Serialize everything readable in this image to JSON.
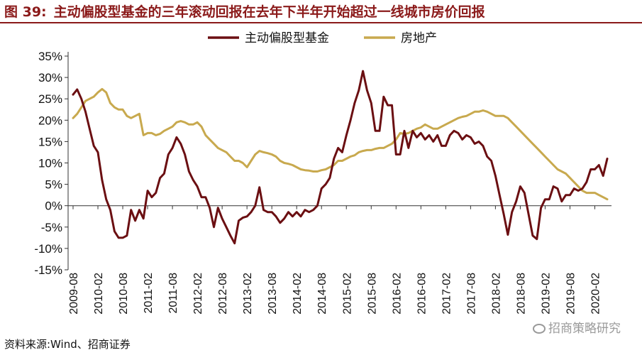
{
  "figure": {
    "label": "图 39:",
    "title": "主动偏股型基金的三年滚动回报在去年下半年开始超过一线城市房价回报"
  },
  "source": "资料来源:Wind、招商证券",
  "watermark": "招商策略研究",
  "chart_data": {
    "type": "line",
    "title": "",
    "xlabel": "",
    "ylabel": "",
    "y_tick_labels": [
      "35%",
      "30%",
      "25%",
      "20%",
      "15%",
      "10%",
      "5%",
      "0%",
      "-5%",
      "-10%",
      "-15%"
    ],
    "y_ticks": [
      35,
      30,
      25,
      20,
      15,
      10,
      5,
      0,
      -5,
      -10,
      -15
    ],
    "ylim": [
      -15,
      35
    ],
    "x_tick_labels": [
      "2009-08",
      "2010-02",
      "2010-08",
      "2011-02",
      "2011-08",
      "2012-02",
      "2012-08",
      "2013-02",
      "2013-08",
      "2014-02",
      "2014-08",
      "2015-02",
      "2015-08",
      "2016-02",
      "2016-08",
      "2017-02",
      "2017-08",
      "2018-02",
      "2018-08",
      "2019-02",
      "2019-08",
      "2020-02"
    ],
    "legend": {
      "position": "top-center",
      "entries": [
        "主动偏股型基金",
        "房地产"
      ]
    },
    "grid": false,
    "series": [
      {
        "name": "主动偏股型基金",
        "color": "#6b0f12",
        "points": [
          [
            "2009-08",
            26.0
          ],
          [
            "2009-09",
            27.2
          ],
          [
            "2009-10",
            25.0
          ],
          [
            "2009-11",
            22.0
          ],
          [
            "2009-12",
            18.0
          ],
          [
            "2010-01",
            14.0
          ],
          [
            "2010-02",
            12.5
          ],
          [
            "2010-03",
            6.0
          ],
          [
            "2010-04",
            1.5
          ],
          [
            "2010-05",
            -1.0
          ],
          [
            "2010-06",
            -6.0
          ],
          [
            "2010-07",
            -7.5
          ],
          [
            "2010-08",
            -7.5
          ],
          [
            "2010-09",
            -7.0
          ],
          [
            "2010-10",
            -1.0
          ],
          [
            "2010-11",
            -3.5
          ],
          [
            "2010-12",
            -1.0
          ],
          [
            "2011-01",
            -3.0
          ],
          [
            "2011-02",
            3.5
          ],
          [
            "2011-03",
            2.0
          ],
          [
            "2011-04",
            3.0
          ],
          [
            "2011-05",
            6.5
          ],
          [
            "2011-06",
            7.5
          ],
          [
            "2011-07",
            12.0
          ],
          [
            "2011-08",
            13.5
          ],
          [
            "2011-09",
            16.0
          ],
          [
            "2011-10",
            14.5
          ],
          [
            "2011-11",
            12.0
          ],
          [
            "2011-12",
            8.0
          ],
          [
            "2012-01",
            6.0
          ],
          [
            "2012-02",
            4.5
          ],
          [
            "2012-03",
            2.0
          ],
          [
            "2012-04",
            2.0
          ],
          [
            "2012-05",
            -0.5
          ],
          [
            "2012-06",
            -5.0
          ],
          [
            "2012-07",
            -0.5
          ],
          [
            "2012-08",
            -3.0
          ],
          [
            "2012-09",
            -5.0
          ],
          [
            "2012-10",
            -7.0
          ],
          [
            "2012-11",
            -8.8
          ],
          [
            "2012-12",
            -3.5
          ],
          [
            "2013-01",
            -2.8
          ],
          [
            "2013-02",
            -2.5
          ],
          [
            "2013-03",
            -1.5
          ],
          [
            "2013-04",
            0.0
          ],
          [
            "2013-05",
            4.3
          ],
          [
            "2013-06",
            -1.0
          ],
          [
            "2013-07",
            -1.5
          ],
          [
            "2013-08",
            -1.5
          ],
          [
            "2013-09",
            -2.5
          ],
          [
            "2013-10",
            -4.0
          ],
          [
            "2013-11",
            -3.0
          ],
          [
            "2013-12",
            -1.5
          ],
          [
            "2014-01",
            -2.5
          ],
          [
            "2014-02",
            -1.5
          ],
          [
            "2014-03",
            -2.5
          ],
          [
            "2014-04",
            -1.0
          ],
          [
            "2014-05",
            -1.5
          ],
          [
            "2014-06",
            -1.0
          ],
          [
            "2014-07",
            0.0
          ],
          [
            "2014-08",
            4.0
          ],
          [
            "2014-09",
            5.0
          ],
          [
            "2014-10",
            6.5
          ],
          [
            "2014-11",
            11.0
          ],
          [
            "2014-12",
            13.5
          ],
          [
            "2015-01",
            12.5
          ],
          [
            "2015-02",
            16.5
          ],
          [
            "2015-03",
            20.0
          ],
          [
            "2015-04",
            24.0
          ],
          [
            "2015-05",
            27.0
          ],
          [
            "2015-06",
            31.5
          ],
          [
            "2015-07",
            27.0
          ],
          [
            "2015-08",
            24.0
          ],
          [
            "2015-09",
            17.5
          ],
          [
            "2015-10",
            17.5
          ],
          [
            "2015-11",
            25.5
          ],
          [
            "2015-12",
            23.5
          ],
          [
            "2016-01",
            23.5
          ],
          [
            "2016-02",
            12.0
          ],
          [
            "2016-03",
            12.0
          ],
          [
            "2016-04",
            17.5
          ],
          [
            "2016-05",
            13.5
          ],
          [
            "2016-06",
            17.5
          ],
          [
            "2016-07",
            16.0
          ],
          [
            "2016-08",
            17.0
          ],
          [
            "2016-09",
            15.5
          ],
          [
            "2016-10",
            16.5
          ],
          [
            "2016-11",
            15.0
          ],
          [
            "2016-12",
            16.5
          ],
          [
            "2017-01",
            14.0
          ],
          [
            "2017-02",
            14.0
          ],
          [
            "2017-03",
            16.5
          ],
          [
            "2017-04",
            17.5
          ],
          [
            "2017-05",
            17.0
          ],
          [
            "2017-06",
            15.5
          ],
          [
            "2017-07",
            16.5
          ],
          [
            "2017-08",
            16.0
          ],
          [
            "2017-09",
            14.5
          ],
          [
            "2017-10",
            15.0
          ],
          [
            "2017-11",
            14.0
          ],
          [
            "2017-12",
            11.5
          ],
          [
            "2018-01",
            10.5
          ],
          [
            "2018-02",
            7.0
          ],
          [
            "2018-03",
            2.5
          ],
          [
            "2018-04",
            -2.0
          ],
          [
            "2018-05",
            -6.8
          ],
          [
            "2018-06",
            -1.5
          ],
          [
            "2018-07",
            1.0
          ],
          [
            "2018-08",
            4.5
          ],
          [
            "2018-09",
            3.0
          ],
          [
            "2018-10",
            -2.0
          ],
          [
            "2018-11",
            -7.0
          ],
          [
            "2018-12",
            -7.8
          ],
          [
            "2019-01",
            -0.5
          ],
          [
            "2019-02",
            1.5
          ],
          [
            "2019-03",
            1.5
          ],
          [
            "2019-04",
            4.5
          ],
          [
            "2019-05",
            4.0
          ],
          [
            "2019-06",
            1.0
          ],
          [
            "2019-07",
            2.5
          ],
          [
            "2019-08",
            2.5
          ],
          [
            "2019-09",
            4.0
          ],
          [
            "2019-10",
            3.5
          ],
          [
            "2019-11",
            4.0
          ],
          [
            "2019-12",
            5.5
          ],
          [
            "2020-01",
            8.5
          ],
          [
            "2020-02",
            8.5
          ],
          [
            "2020-03",
            9.5
          ],
          [
            "2020-04",
            7.0
          ],
          [
            "2020-05",
            11.0
          ]
        ]
      },
      {
        "name": "房地产",
        "color": "#c8a94e",
        "points": [
          [
            "2009-08",
            20.5
          ],
          [
            "2009-09",
            21.5
          ],
          [
            "2009-10",
            23.0
          ],
          [
            "2009-11",
            24.5
          ],
          [
            "2009-12",
            25.0
          ],
          [
            "2010-01",
            25.5
          ],
          [
            "2010-02",
            26.5
          ],
          [
            "2010-03",
            27.3
          ],
          [
            "2010-04",
            26.5
          ],
          [
            "2010-05",
            24.0
          ],
          [
            "2010-06",
            23.0
          ],
          [
            "2010-07",
            22.5
          ],
          [
            "2010-08",
            22.5
          ],
          [
            "2010-09",
            21.0
          ],
          [
            "2010-10",
            20.5
          ],
          [
            "2010-11",
            21.0
          ],
          [
            "2010-12",
            21.5
          ],
          [
            "2011-01",
            16.5
          ],
          [
            "2011-02",
            17.0
          ],
          [
            "2011-03",
            17.0
          ],
          [
            "2011-04",
            16.5
          ],
          [
            "2011-05",
            16.8
          ],
          [
            "2011-06",
            17.5
          ],
          [
            "2011-07",
            18.0
          ],
          [
            "2011-08",
            18.5
          ],
          [
            "2011-09",
            19.5
          ],
          [
            "2011-10",
            19.8
          ],
          [
            "2011-11",
            19.5
          ],
          [
            "2011-12",
            19.0
          ],
          [
            "2012-01",
            19.0
          ],
          [
            "2012-02",
            19.5
          ],
          [
            "2012-03",
            18.5
          ],
          [
            "2012-04",
            16.5
          ],
          [
            "2012-05",
            15.5
          ],
          [
            "2012-06",
            14.5
          ],
          [
            "2012-07",
            13.5
          ],
          [
            "2012-08",
            13.0
          ],
          [
            "2012-09",
            12.5
          ],
          [
            "2012-10",
            11.5
          ],
          [
            "2012-11",
            10.5
          ],
          [
            "2012-12",
            10.5
          ],
          [
            "2013-01",
            10.0
          ],
          [
            "2013-02",
            9.0
          ],
          [
            "2013-03",
            10.5
          ],
          [
            "2013-04",
            12.0
          ],
          [
            "2013-05",
            12.8
          ],
          [
            "2013-06",
            12.5
          ],
          [
            "2013-07",
            12.3
          ],
          [
            "2013-08",
            12.0
          ],
          [
            "2013-09",
            11.5
          ],
          [
            "2013-10",
            10.5
          ],
          [
            "2013-11",
            10.0
          ],
          [
            "2013-12",
            9.8
          ],
          [
            "2014-01",
            9.5
          ],
          [
            "2014-02",
            9.0
          ],
          [
            "2014-03",
            8.5
          ],
          [
            "2014-04",
            8.3
          ],
          [
            "2014-05",
            8.2
          ],
          [
            "2014-06",
            8.0
          ],
          [
            "2014-07",
            8.0
          ],
          [
            "2014-08",
            8.3
          ],
          [
            "2014-09",
            8.5
          ],
          [
            "2014-10",
            9.0
          ],
          [
            "2014-11",
            9.5
          ],
          [
            "2014-12",
            10.5
          ],
          [
            "2015-01",
            10.5
          ],
          [
            "2015-02",
            11.0
          ],
          [
            "2015-03",
            11.5
          ],
          [
            "2015-04",
            11.8
          ],
          [
            "2015-05",
            12.5
          ],
          [
            "2015-06",
            12.8
          ],
          [
            "2015-07",
            13.0
          ],
          [
            "2015-08",
            13.0
          ],
          [
            "2015-09",
            13.3
          ],
          [
            "2015-10",
            13.5
          ],
          [
            "2015-11",
            13.5
          ],
          [
            "2015-12",
            14.0
          ],
          [
            "2016-01",
            14.5
          ],
          [
            "2016-02",
            15.5
          ],
          [
            "2016-03",
            17.0
          ],
          [
            "2016-04",
            16.8
          ],
          [
            "2016-05",
            17.0
          ],
          [
            "2016-06",
            17.5
          ],
          [
            "2016-07",
            18.0
          ],
          [
            "2016-08",
            18.3
          ],
          [
            "2016-09",
            19.0
          ],
          [
            "2016-10",
            18.5
          ],
          [
            "2016-11",
            18.0
          ],
          [
            "2016-12",
            18.0
          ],
          [
            "2017-01",
            18.5
          ],
          [
            "2017-02",
            19.0
          ],
          [
            "2017-03",
            19.5
          ],
          [
            "2017-04",
            20.0
          ],
          [
            "2017-05",
            20.5
          ],
          [
            "2017-06",
            20.8
          ],
          [
            "2017-07",
            21.0
          ],
          [
            "2017-08",
            21.5
          ],
          [
            "2017-09",
            22.0
          ],
          [
            "2017-10",
            22.0
          ],
          [
            "2017-11",
            22.3
          ],
          [
            "2017-12",
            22.0
          ],
          [
            "2018-01",
            21.5
          ],
          [
            "2018-02",
            21.0
          ],
          [
            "2018-03",
            21.0
          ],
          [
            "2018-04",
            21.0
          ],
          [
            "2018-05",
            20.5
          ],
          [
            "2018-06",
            19.5
          ],
          [
            "2018-07",
            18.5
          ],
          [
            "2018-08",
            17.5
          ],
          [
            "2018-09",
            16.5
          ],
          [
            "2018-10",
            15.5
          ],
          [
            "2018-11",
            14.5
          ],
          [
            "2018-12",
            13.5
          ],
          [
            "2019-01",
            12.5
          ],
          [
            "2019-02",
            11.5
          ],
          [
            "2019-03",
            10.5
          ],
          [
            "2019-04",
            9.5
          ],
          [
            "2019-05",
            8.5
          ],
          [
            "2019-06",
            8.0
          ],
          [
            "2019-07",
            7.5
          ],
          [
            "2019-08",
            6.5
          ],
          [
            "2019-09",
            5.5
          ],
          [
            "2019-10",
            4.5
          ],
          [
            "2019-11",
            3.5
          ],
          [
            "2019-12",
            3.0
          ],
          [
            "2020-01",
            3.0
          ],
          [
            "2020-02",
            3.0
          ],
          [
            "2020-03",
            2.5
          ],
          [
            "2020-04",
            2.0
          ],
          [
            "2020-05",
            1.5
          ]
        ]
      }
    ]
  }
}
